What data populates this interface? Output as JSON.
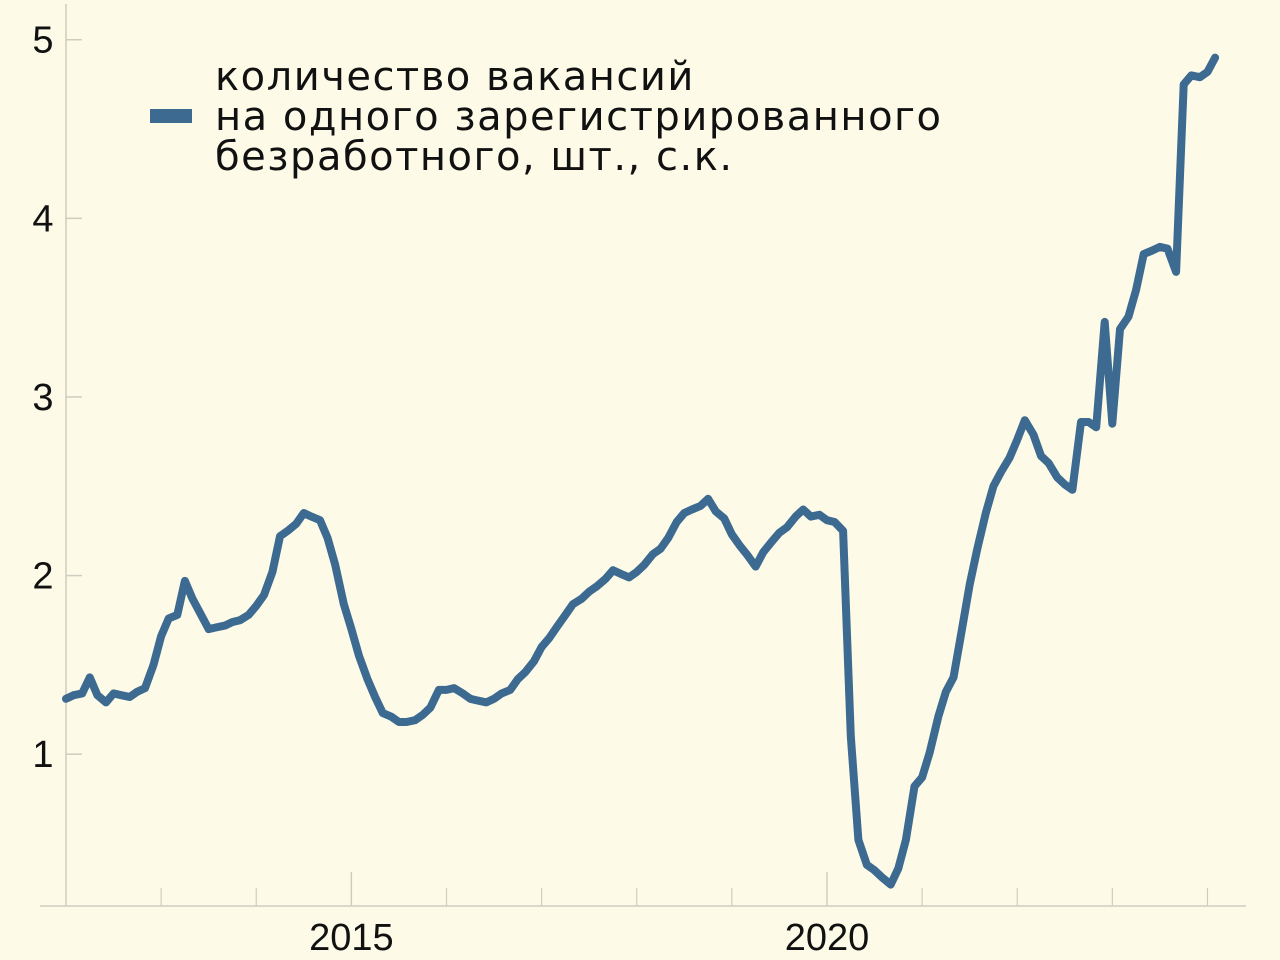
{
  "chart_data": {
    "type": "line",
    "title": "",
    "xlabel": "",
    "ylabel": "",
    "xlim": [
      2012.0,
      2024.3
    ],
    "ylim": [
      0.15,
      5.2
    ],
    "x_ticks": [
      {
        "value": 2015,
        "label": "2015"
      },
      {
        "value": 2020,
        "label": "2020"
      }
    ],
    "x_minor_ticks": [
      2013,
      2014,
      2016,
      2017,
      2018,
      2019,
      2021,
      2022,
      2023,
      2024
    ],
    "y_ticks": [
      {
        "value": 1,
        "label": "1"
      },
      {
        "value": 2,
        "label": "2"
      },
      {
        "value": 3,
        "label": "3"
      },
      {
        "value": 4,
        "label": "4"
      },
      {
        "value": 5,
        "label": "5"
      }
    ],
    "grid": false,
    "legend_position": "top-left",
    "series": [
      {
        "name": "количество вакансий на одного зарегистрированного безработного, шт., с.к.",
        "name_lines": [
          "количество вакансий",
          "на одного зарегистрированного",
          "безработного, шт., с.к."
        ],
        "color": "#3d6a91",
        "points": [
          [
            2012.0,
            1.31
          ],
          [
            2012.08,
            1.33
          ],
          [
            2012.17,
            1.34
          ],
          [
            2012.25,
            1.43
          ],
          [
            2012.33,
            1.33
          ],
          [
            2012.42,
            1.29
          ],
          [
            2012.5,
            1.34
          ],
          [
            2012.58,
            1.33
          ],
          [
            2012.67,
            1.32
          ],
          [
            2012.75,
            1.35
          ],
          [
            2012.83,
            1.37
          ],
          [
            2012.92,
            1.5
          ],
          [
            2013.0,
            1.66
          ],
          [
            2013.08,
            1.76
          ],
          [
            2013.17,
            1.78
          ],
          [
            2013.25,
            1.97
          ],
          [
            2013.33,
            1.87
          ],
          [
            2013.42,
            1.78
          ],
          [
            2013.5,
            1.7
          ],
          [
            2013.58,
            1.71
          ],
          [
            2013.67,
            1.72
          ],
          [
            2013.75,
            1.74
          ],
          [
            2013.83,
            1.75
          ],
          [
            2013.92,
            1.78
          ],
          [
            2014.0,
            1.83
          ],
          [
            2014.08,
            1.89
          ],
          [
            2014.17,
            2.02
          ],
          [
            2014.25,
            2.22
          ],
          [
            2014.33,
            2.25
          ],
          [
            2014.42,
            2.29
          ],
          [
            2014.5,
            2.35
          ],
          [
            2014.58,
            2.33
          ],
          [
            2014.67,
            2.31
          ],
          [
            2014.75,
            2.21
          ],
          [
            2014.83,
            2.06
          ],
          [
            2014.92,
            1.84
          ],
          [
            2015.0,
            1.7
          ],
          [
            2015.08,
            1.55
          ],
          [
            2015.17,
            1.42
          ],
          [
            2015.25,
            1.32
          ],
          [
            2015.33,
            1.23
          ],
          [
            2015.42,
            1.21
          ],
          [
            2015.5,
            1.18
          ],
          [
            2015.58,
            1.18
          ],
          [
            2015.67,
            1.19
          ],
          [
            2015.75,
            1.22
          ],
          [
            2015.83,
            1.26
          ],
          [
            2015.92,
            1.36
          ],
          [
            2016.0,
            1.36
          ],
          [
            2016.08,
            1.37
          ],
          [
            2016.17,
            1.34
          ],
          [
            2016.25,
            1.31
          ],
          [
            2016.33,
            1.3
          ],
          [
            2016.42,
            1.29
          ],
          [
            2016.5,
            1.31
          ],
          [
            2016.58,
            1.34
          ],
          [
            2016.67,
            1.36
          ],
          [
            2016.75,
            1.42
          ],
          [
            2016.83,
            1.46
          ],
          [
            2016.92,
            1.52
          ],
          [
            2017.0,
            1.6
          ],
          [
            2017.08,
            1.65
          ],
          [
            2017.17,
            1.72
          ],
          [
            2017.25,
            1.78
          ],
          [
            2017.33,
            1.84
          ],
          [
            2017.42,
            1.87
          ],
          [
            2017.5,
            1.91
          ],
          [
            2017.58,
            1.94
          ],
          [
            2017.67,
            1.98
          ],
          [
            2017.75,
            2.03
          ],
          [
            2017.83,
            2.01
          ],
          [
            2017.92,
            1.99
          ],
          [
            2018.0,
            2.02
          ],
          [
            2018.08,
            2.06
          ],
          [
            2018.17,
            2.12
          ],
          [
            2018.25,
            2.15
          ],
          [
            2018.33,
            2.21
          ],
          [
            2018.42,
            2.3
          ],
          [
            2018.5,
            2.35
          ],
          [
            2018.58,
            2.37
          ],
          [
            2018.67,
            2.39
          ],
          [
            2018.75,
            2.43
          ],
          [
            2018.83,
            2.36
          ],
          [
            2018.92,
            2.32
          ],
          [
            2019.0,
            2.23
          ],
          [
            2019.08,
            2.17
          ],
          [
            2019.17,
            2.11
          ],
          [
            2019.25,
            2.05
          ],
          [
            2019.33,
            2.13
          ],
          [
            2019.42,
            2.19
          ],
          [
            2019.5,
            2.24
          ],
          [
            2019.58,
            2.27
          ],
          [
            2019.67,
            2.33
          ],
          [
            2019.75,
            2.37
          ],
          [
            2019.83,
            2.33
          ],
          [
            2019.92,
            2.34
          ],
          [
            2020.0,
            2.31
          ],
          [
            2020.08,
            2.3
          ],
          [
            2020.17,
            2.25
          ],
          [
            2020.25,
            1.1
          ],
          [
            2020.33,
            0.52
          ],
          [
            2020.42,
            0.38
          ],
          [
            2020.5,
            0.35
          ],
          [
            2020.58,
            0.31
          ],
          [
            2020.67,
            0.27
          ],
          [
            2020.75,
            0.36
          ],
          [
            2020.83,
            0.52
          ],
          [
            2020.92,
            0.82
          ],
          [
            2021.0,
            0.87
          ],
          [
            2021.08,
            1.01
          ],
          [
            2021.17,
            1.21
          ],
          [
            2021.25,
            1.35
          ],
          [
            2021.33,
            1.43
          ],
          [
            2021.42,
            1.7
          ],
          [
            2021.5,
            1.95
          ],
          [
            2021.58,
            2.15
          ],
          [
            2021.67,
            2.35
          ],
          [
            2021.75,
            2.5
          ],
          [
            2021.83,
            2.58
          ],
          [
            2021.92,
            2.66
          ],
          [
            2022.0,
            2.76
          ],
          [
            2022.08,
            2.87
          ],
          [
            2022.17,
            2.79
          ],
          [
            2022.25,
            2.67
          ],
          [
            2022.33,
            2.63
          ],
          [
            2022.42,
            2.55
          ],
          [
            2022.5,
            2.51
          ],
          [
            2022.58,
            2.48
          ],
          [
            2022.67,
            2.86
          ],
          [
            2022.75,
            2.86
          ],
          [
            2022.83,
            2.83
          ],
          [
            2022.92,
            3.42
          ],
          [
            2023.0,
            2.85
          ],
          [
            2023.08,
            3.38
          ],
          [
            2023.17,
            3.45
          ],
          [
            2023.25,
            3.6
          ],
          [
            2023.33,
            3.8
          ],
          [
            2023.42,
            3.82
          ],
          [
            2023.5,
            3.84
          ],
          [
            2023.58,
            3.83
          ],
          [
            2023.67,
            3.7
          ],
          [
            2023.75,
            4.75
          ],
          [
            2023.83,
            4.8
          ],
          [
            2023.92,
            4.79
          ],
          [
            2024.0,
            4.82
          ],
          [
            2024.08,
            4.9
          ]
        ]
      }
    ]
  }
}
